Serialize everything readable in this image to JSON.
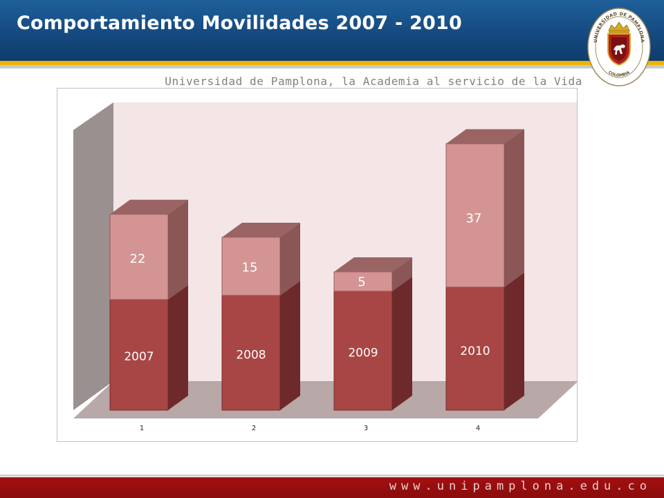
{
  "header": {
    "title": "Comportamiento Movilidades 2007 - 2010",
    "subtitle": "Universidad de Pamplona, la Academia al servicio de la Vida"
  },
  "logo": {
    "ring_text_top": "UNIVERSIDAD DE PAMPLONA",
    "ring_text_bottom": "COLOMBIA"
  },
  "footer": {
    "url": "www.unipamplona.edu.co"
  },
  "colors": {
    "header_blue": "#154a80",
    "accent_gold": "#f0b400",
    "bar_bottom": "#a84545",
    "bar_top": "#d49494",
    "footer_red": "#a41010"
  },
  "chart_data": {
    "type": "bar",
    "stacked": true,
    "three_d": true,
    "categories": [
      "1",
      "2",
      "3",
      "4"
    ],
    "series": [
      {
        "values": [
          2007,
          2008,
          2009,
          2010
        ],
        "labels": [
          "2007",
          "2008",
          "2009",
          "2010"
        ]
      },
      {
        "values": [
          22,
          15,
          5,
          37
        ],
        "labels": [
          "22",
          "15",
          "5",
          "37"
        ]
      }
    ],
    "xlabel": "",
    "ylabel": "",
    "grid": false,
    "legend": "none"
  }
}
